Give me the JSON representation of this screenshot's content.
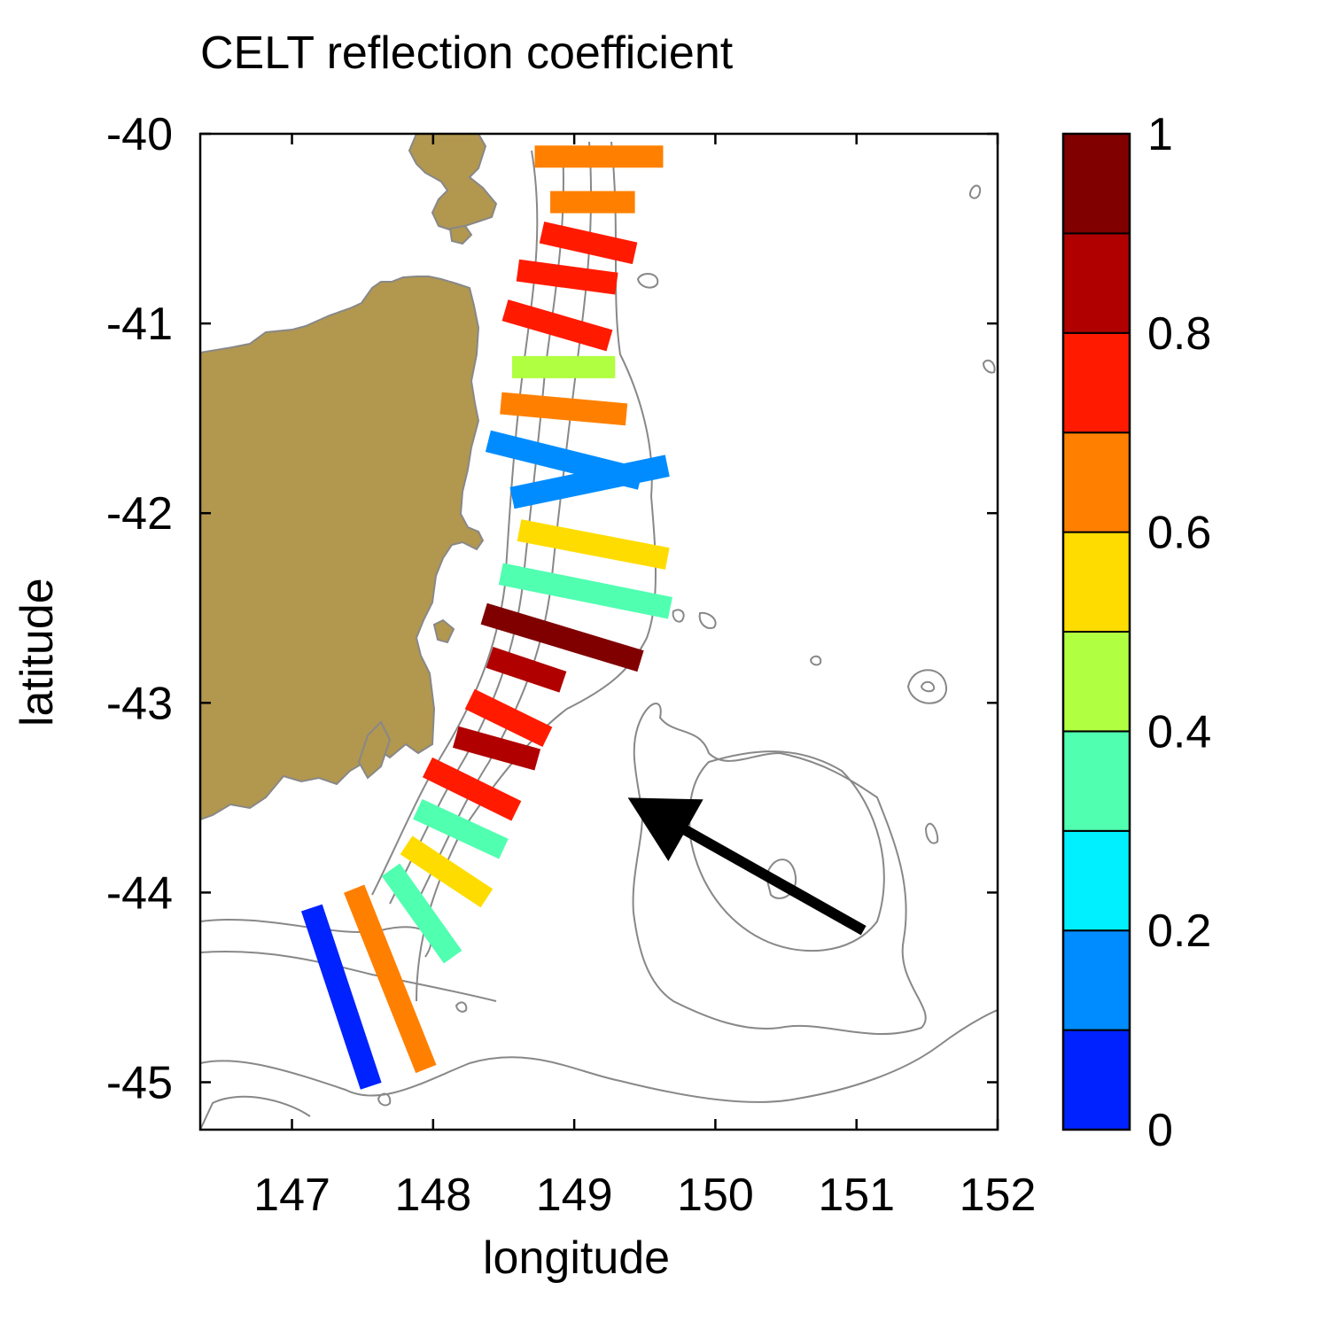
{
  "title": "CELT reflection coefficient",
  "xlabel": "longitude",
  "ylabel": "latitude",
  "chart_data": {
    "type": "map",
    "title": "CELT reflection coefficient",
    "xlabel": "longitude",
    "ylabel": "latitude",
    "xlim": [
      146.35,
      152.0
    ],
    "ylim": [
      -45.25,
      -40.0
    ],
    "xticks": [
      "147",
      "148",
      "149",
      "150",
      "151",
      "152"
    ],
    "yticks": [
      "-40",
      "-41",
      "-42",
      "-43",
      "-44",
      "-45"
    ],
    "colorbar": {
      "range": [
        0,
        1
      ],
      "ticks": [
        "0",
        "0.2",
        "0.4",
        "0.6",
        "0.8",
        "1"
      ],
      "colors": [
        "#0022ff",
        "#008cff",
        "#00f0ff",
        "#50ffb0",
        "#b0ff40",
        "#ffdc00",
        "#ff8000",
        "#ff1a00",
        "#b00000",
        "#800000"
      ]
    },
    "land_color": "#b2974f",
    "contour_color": "#888888",
    "segments": [
      {
        "lon": [
          148.72,
          149.63
        ],
        "lat": [
          -40.12,
          -40.12
        ],
        "value": 0.63
      },
      {
        "lon": [
          148.83,
          149.43
        ],
        "lat": [
          -40.36,
          -40.36
        ],
        "value": 0.62
      },
      {
        "lon": [
          148.77,
          149.43
        ],
        "lat": [
          -40.52,
          -40.63
        ],
        "value": 0.78
      },
      {
        "lon": [
          148.6,
          149.3
        ],
        "lat": [
          -40.72,
          -40.79
        ],
        "value": 0.78
      },
      {
        "lon": [
          148.51,
          149.25
        ],
        "lat": [
          -40.93,
          -41.09
        ],
        "value": 0.78
      },
      {
        "lon": [
          148.56,
          149.29
        ],
        "lat": [
          -41.23,
          -41.23
        ],
        "value": 0.43
      },
      {
        "lon": [
          148.48,
          149.37
        ],
        "lat": [
          -41.42,
          -41.48
        ],
        "value": 0.66
      },
      {
        "lon": [
          148.39,
          149.47
        ],
        "lat": [
          -41.62,
          -41.82
        ],
        "value": 0.13
      },
      {
        "lon": [
          148.56,
          149.66
        ],
        "lat": [
          -41.92,
          -41.75
        ],
        "value": 0.17
      },
      {
        "lon": [
          148.61,
          149.66
        ],
        "lat": [
          -42.09,
          -42.24
        ],
        "value": 0.55
      },
      {
        "lon": [
          148.48,
          149.68
        ],
        "lat": [
          -42.32,
          -42.5
        ],
        "value": 0.35
      },
      {
        "lon": [
          148.36,
          149.47
        ],
        "lat": [
          -42.53,
          -42.78
        ],
        "value": 0.95
      },
      {
        "lon": [
          148.4,
          148.92
        ],
        "lat": [
          -42.76,
          -42.89
        ],
        "value": 0.87
      },
      {
        "lon": [
          148.26,
          148.81
        ],
        "lat": [
          -42.98,
          -43.18
        ],
        "value": 0.78
      },
      {
        "lon": [
          148.16,
          148.74
        ],
        "lat": [
          -43.18,
          -43.3
        ],
        "value": 0.8
      },
      {
        "lon": [
          147.96,
          148.59
        ],
        "lat": [
          -43.34,
          -43.57
        ],
        "value": 0.73
      },
      {
        "lon": [
          147.89,
          148.5
        ],
        "lat": [
          -43.56,
          -43.77
        ],
        "value": 0.37
      },
      {
        "lon": [
          147.81,
          148.38
        ],
        "lat": [
          -43.75,
          -44.03
        ],
        "value": 0.55
      },
      {
        "lon": [
          147.7,
          148.14
        ],
        "lat": [
          -43.88,
          -44.34
        ],
        "value": 0.37
      },
      {
        "lon": [
          147.44,
          147.95
        ],
        "lat": [
          -43.98,
          -44.93
        ],
        "value": 0.64
      },
      {
        "lon": [
          147.14,
          147.56
        ],
        "lat": [
          -44.08,
          -45.02
        ],
        "value": 0.07
      }
    ],
    "arrow": {
      "from": [
        151.05,
        -44.2
      ],
      "to": [
        149.38,
        -43.5
      ]
    }
  }
}
